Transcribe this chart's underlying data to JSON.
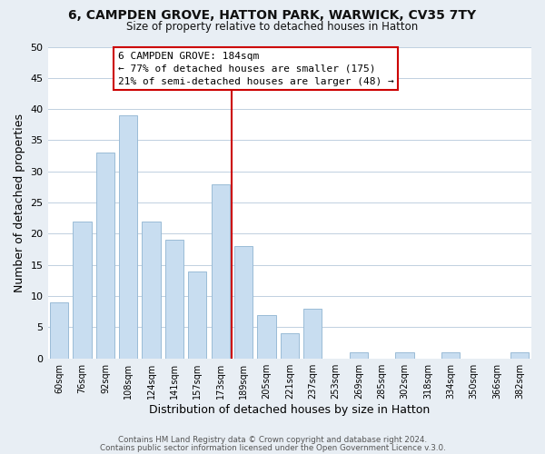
{
  "title": "6, CAMPDEN GROVE, HATTON PARK, WARWICK, CV35 7TY",
  "subtitle": "Size of property relative to detached houses in Hatton",
  "xlabel": "Distribution of detached houses by size in Hatton",
  "ylabel": "Number of detached properties",
  "bar_color": "#c8ddf0",
  "bar_edgecolor": "#9abcd6",
  "categories": [
    "60sqm",
    "76sqm",
    "92sqm",
    "108sqm",
    "124sqm",
    "141sqm",
    "157sqm",
    "173sqm",
    "189sqm",
    "205sqm",
    "221sqm",
    "237sqm",
    "253sqm",
    "269sqm",
    "285sqm",
    "302sqm",
    "318sqm",
    "334sqm",
    "350sqm",
    "366sqm",
    "382sqm"
  ],
  "values": [
    9,
    22,
    33,
    39,
    22,
    19,
    14,
    28,
    18,
    7,
    4,
    8,
    0,
    1,
    0,
    1,
    0,
    1,
    0,
    0,
    1
  ],
  "ylim": [
    0,
    50
  ],
  "yticks": [
    0,
    5,
    10,
    15,
    20,
    25,
    30,
    35,
    40,
    45,
    50
  ],
  "marker_label": "6 CAMPDEN GROVE: 184sqm",
  "annotation_line1": "← 77% of detached houses are smaller (175)",
  "annotation_line2": "21% of semi-detached houses are larger (48) →",
  "footer1": "Contains HM Land Registry data © Crown copyright and database right 2024.",
  "footer2": "Contains public sector information licensed under the Open Government Licence v.3.0.",
  "background_color": "#e8eef4",
  "plot_bg_color": "#ffffff",
  "grid_color": "#c0d0e0"
}
